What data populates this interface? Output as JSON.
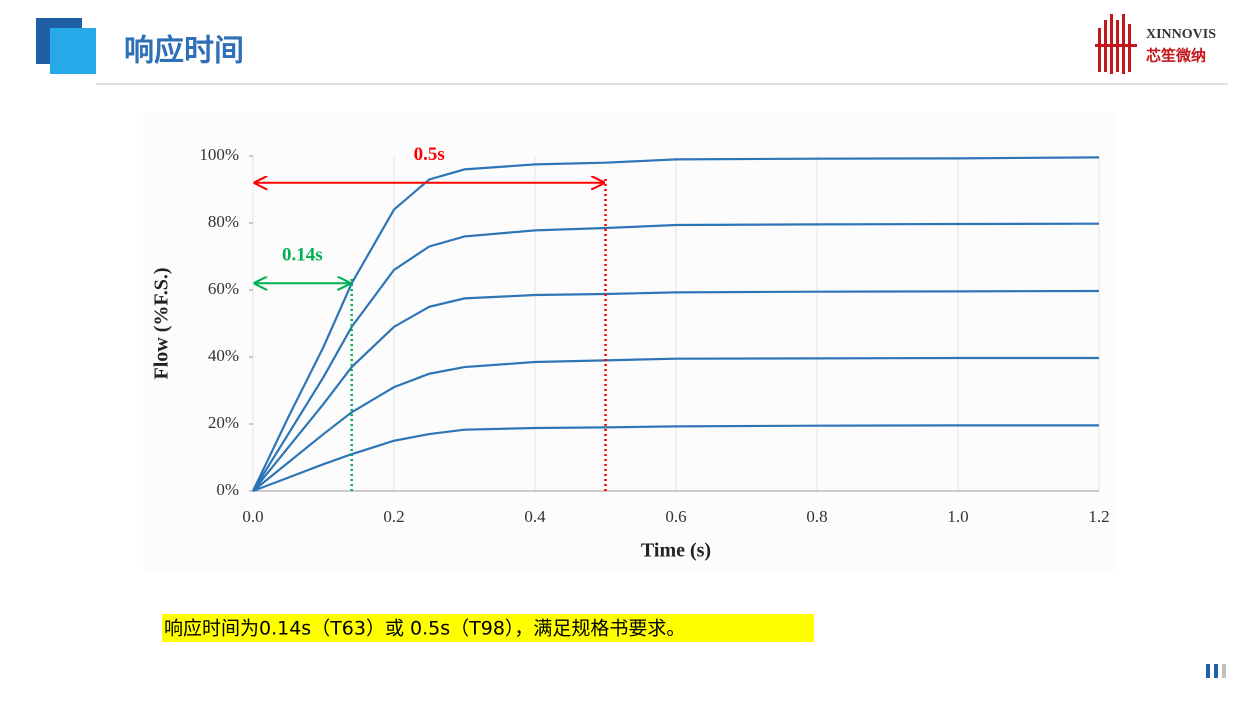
{
  "header": {
    "title": "响应时间"
  },
  "logo": {
    "en": "XINNOVIS",
    "cn": "芯笙微纳"
  },
  "caption": "响应时间为0.14s（T63）或 0.5s（T98），满足规格书要求。",
  "chart_data": {
    "type": "line",
    "x_label": "Time (s)",
    "y_label": "Flow (%F.S.)",
    "x": [
      0,
      0.05,
      0.1,
      0.14,
      0.2,
      0.25,
      0.3,
      0.4,
      0.5,
      0.6,
      0.8,
      1.0,
      1.2
    ],
    "series": [
      {
        "color": "#2e75b6",
        "values": [
          0,
          22,
          43,
          62,
          84,
          93,
          96,
          97.5,
          98,
          99,
          99.2,
          99.3,
          99.6
        ]
      },
      {
        "color": "#2e75b6",
        "values": [
          0,
          17,
          34,
          49,
          66,
          73,
          76,
          77.8,
          78.5,
          79.4,
          79.6,
          79.7,
          79.8
        ]
      },
      {
        "color": "#2e75b6",
        "values": [
          0,
          13,
          26,
          37,
          49,
          55,
          57.5,
          58.5,
          58.8,
          59.3,
          59.5,
          59.6,
          59.7
        ]
      },
      {
        "color": "#2e75b6",
        "values": [
          0,
          8.5,
          17,
          23.5,
          31,
          35,
          37,
          38.5,
          39,
          39.5,
          39.6,
          39.7,
          39.7
        ]
      },
      {
        "color": "#2e75b6",
        "values": [
          0,
          4,
          8,
          11,
          15,
          17,
          18.3,
          18.8,
          19,
          19.3,
          19.5,
          19.6,
          19.6
        ]
      }
    ],
    "xlim": [
      0,
      1.2
    ],
    "xticks": [
      {
        "value": 0,
        "label": "0.0"
      },
      0.2,
      0.4,
      0.6,
      0.8,
      {
        "value": 1,
        "label": "1.0"
      },
      1.2
    ],
    "ylim": [
      0,
      100
    ],
    "yticks": [
      {
        "value": 0,
        "label": "0%"
      },
      {
        "value": 20,
        "label": "20%"
      },
      {
        "value": 40,
        "label": "40%"
      },
      {
        "value": 60,
        "label": "60%"
      },
      {
        "value": 80,
        "label": "80%"
      },
      {
        "value": 100,
        "label": "100%"
      }
    ],
    "grid": true,
    "annotations": [
      {
        "text": "0.5s",
        "x": 0.5,
        "y": 92,
        "color": "#ff0000"
      },
      {
        "text": "0.14s",
        "x": 0.14,
        "y": 62,
        "color": "#00b050"
      }
    ]
  }
}
